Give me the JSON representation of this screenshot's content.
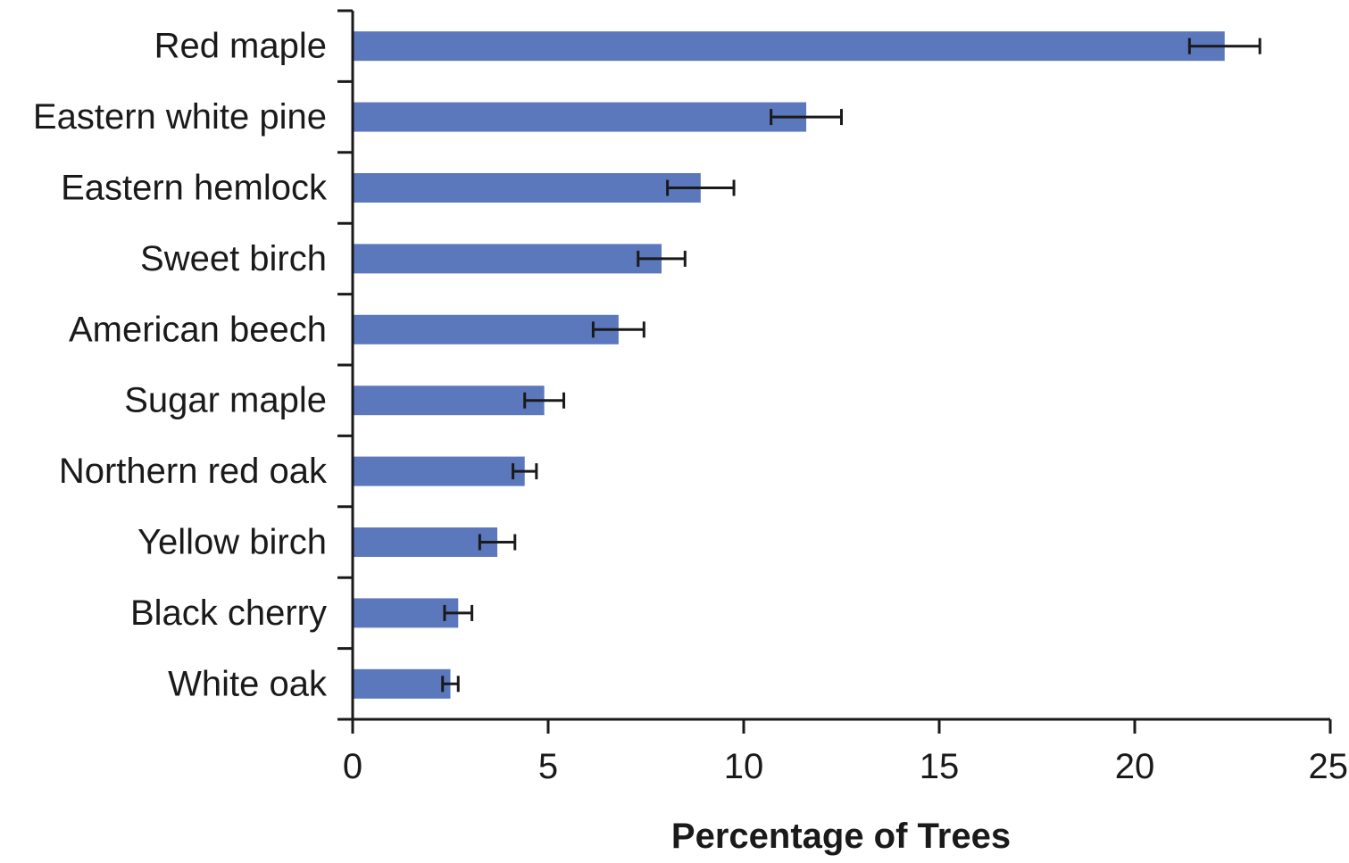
{
  "chart_data": {
    "type": "bar",
    "orientation": "horizontal",
    "categories": [
      "Red maple",
      "Eastern white pine",
      "Eastern hemlock",
      "Sweet birch",
      "American beech",
      "Sugar maple",
      "Northern red oak",
      "Yellow birch",
      "Black cherry",
      "White oak"
    ],
    "values": [
      22.3,
      11.6,
      8.9,
      7.9,
      6.8,
      4.9,
      4.4,
      3.7,
      2.7,
      2.5
    ],
    "error": [
      0.9,
      0.9,
      0.85,
      0.6,
      0.65,
      0.5,
      0.3,
      0.45,
      0.35,
      0.2
    ],
    "title": "",
    "xlabel": "Percentage of Trees",
    "ylabel": "",
    "xlim": [
      0,
      25
    ],
    "xticks": [
      "0",
      "5",
      "10",
      "15",
      "20",
      "25"
    ],
    "grid": false,
    "legend": "none",
    "bar_color": "#5b78bd",
    "error_color": "#1a1a1a",
    "axis_color": "#1a1a1a"
  }
}
